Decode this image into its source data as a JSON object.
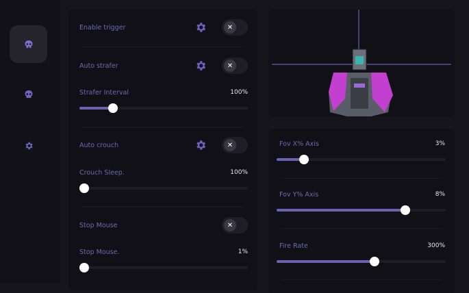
{
  "sidebar": {
    "items": [
      {
        "icon": "skull-icon",
        "active": true
      },
      {
        "icon": "skull-icon",
        "active": false
      },
      {
        "icon": "gear-icon",
        "active": false
      }
    ]
  },
  "left_panel": {
    "enable_trigger": {
      "label": "Enable trigger",
      "enabled": false
    },
    "auto_strafer": {
      "label": "Auto strafer",
      "enabled": false
    },
    "strafer_interval": {
      "label": "Strafer Interval",
      "value": "100%",
      "fill": 0.2
    },
    "auto_crouch": {
      "label": "Auto crouch",
      "enabled": false
    },
    "crouch_sleep": {
      "label": "Crouch Sleep.",
      "value": "100%",
      "fill": 0
    },
    "stop_mouse": {
      "label": "Stop Mouse",
      "enabled": false
    },
    "stop_mouse_slider": {
      "label": "Stop Mouse.",
      "value": "1%",
      "fill": 0
    }
  },
  "right_panel": {
    "fov_x": {
      "label": "Fov X% Axis",
      "value": "3%",
      "fill": 0.16
    },
    "fov_y": {
      "label": "Fov Y% Axis",
      "value": "8%",
      "fill": 0.76
    },
    "fire_rate": {
      "label": "Fire Rate",
      "value": "300%",
      "fill": 0.58
    }
  },
  "colors": {
    "accent": "#6b62b3",
    "background": "#16151b",
    "panel": "#111016"
  }
}
